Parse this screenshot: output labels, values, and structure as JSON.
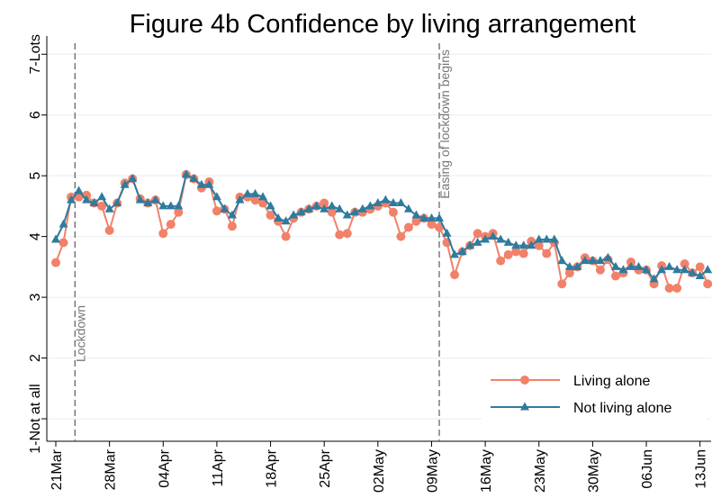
{
  "chart_data": {
    "type": "line",
    "title": "Figure 4b Confidence by living arrangement",
    "categories": [
      "21Mar",
      null,
      null,
      null,
      null,
      null,
      null,
      "28Mar",
      null,
      null,
      null,
      null,
      null,
      null,
      "04Apr",
      null,
      null,
      null,
      null,
      null,
      null,
      "11Apr",
      null,
      null,
      null,
      null,
      null,
      null,
      "18Apr",
      null,
      null,
      null,
      null,
      null,
      null,
      "25Apr",
      null,
      null,
      null,
      null,
      null,
      null,
      "02May",
      null,
      null,
      null,
      null,
      null,
      null,
      "09May",
      null,
      null,
      null,
      null,
      null,
      null,
      "16May",
      null,
      null,
      null,
      null,
      null,
      null,
      "23May",
      null,
      null,
      null,
      null,
      null,
      null,
      "30May",
      null,
      null,
      null,
      null,
      null,
      null,
      "06Jun",
      null,
      null,
      null,
      null,
      null,
      null,
      "13Jun",
      null
    ],
    "series": [
      {
        "name": "Living alone",
        "color": "#f2816a",
        "marker": "circle",
        "values": [
          3.57,
          3.9,
          4.65,
          4.65,
          4.68,
          4.55,
          4.5,
          4.1,
          4.55,
          4.88,
          4.95,
          4.62,
          4.55,
          4.6,
          4.05,
          4.2,
          4.4,
          5.02,
          4.95,
          4.8,
          4.9,
          4.42,
          4.45,
          4.17,
          4.65,
          4.65,
          4.6,
          4.55,
          4.35,
          4.25,
          4.0,
          4.3,
          4.4,
          4.45,
          4.5,
          4.55,
          4.4,
          4.03,
          4.05,
          4.4,
          4.4,
          4.45,
          4.5,
          4.55,
          4.4,
          4.0,
          4.15,
          4.25,
          4.3,
          4.2,
          4.15,
          3.9,
          3.37,
          3.75,
          3.85,
          4.05,
          4.0,
          4.05,
          3.6,
          3.7,
          3.75,
          3.72,
          3.92,
          3.85,
          3.72,
          3.9,
          3.22,
          3.4,
          3.5,
          3.65,
          3.6,
          3.45,
          3.62,
          3.35,
          3.4,
          3.58,
          3.45,
          3.45,
          3.22,
          3.52,
          3.15,
          3.15,
          3.55,
          3.4,
          3.5,
          3.22
        ]
      },
      {
        "name": "Not living alone",
        "color": "#2f7b9e",
        "marker": "triangle",
        "values": [
          3.95,
          4.2,
          4.6,
          4.75,
          4.6,
          4.55,
          4.65,
          4.45,
          4.55,
          4.85,
          4.95,
          4.6,
          4.55,
          4.6,
          4.5,
          4.5,
          4.5,
          5.02,
          4.95,
          4.85,
          4.85,
          4.65,
          4.45,
          4.35,
          4.6,
          4.7,
          4.7,
          4.65,
          4.5,
          4.3,
          4.25,
          4.35,
          4.4,
          4.45,
          4.5,
          4.45,
          4.5,
          4.45,
          4.35,
          4.4,
          4.45,
          4.5,
          4.55,
          4.6,
          4.55,
          4.55,
          4.45,
          4.35,
          4.3,
          4.3,
          4.3,
          4.05,
          3.7,
          3.75,
          3.85,
          3.9,
          3.95,
          4.0,
          3.95,
          3.9,
          3.85,
          3.85,
          3.85,
          3.95,
          3.95,
          3.95,
          3.6,
          3.5,
          3.5,
          3.6,
          3.6,
          3.6,
          3.65,
          3.5,
          3.45,
          3.5,
          3.5,
          3.45,
          3.3,
          3.45,
          3.5,
          3.45,
          3.45,
          3.4,
          3.35,
          3.45
        ]
      }
    ],
    "ylim": [
      0.63,
      7.3
    ],
    "yticks": [
      {
        "value": 1,
        "label": "1-Not at all"
      },
      2,
      3,
      4,
      5,
      6,
      {
        "value": 7,
        "label": "7-Lots"
      }
    ],
    "grid": true,
    "legend": "lower right",
    "vlines": [
      {
        "x": 2.5,
        "label": "Lockdown"
      },
      {
        "x": 50,
        "label": "Easing of lockdown begins"
      }
    ]
  }
}
